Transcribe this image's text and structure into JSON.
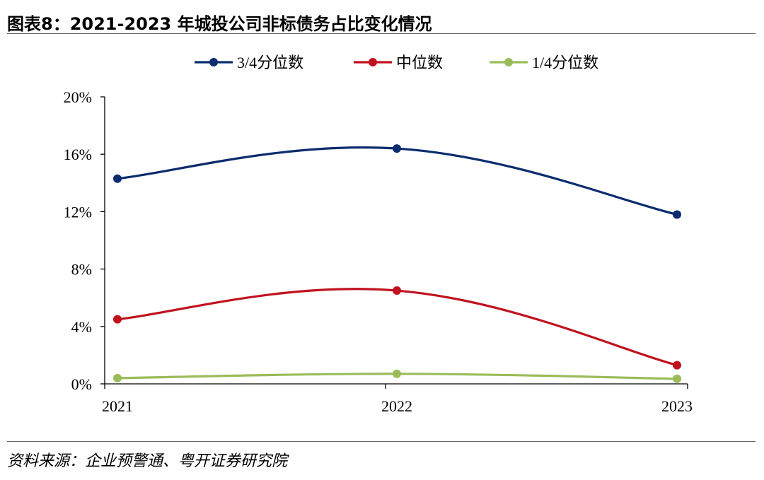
{
  "title": "图表8：2021-2023 年城投公司非标债务占比变化情况",
  "source": "资料来源：企业预警通、粤开证券研究院",
  "chart_data": {
    "type": "line",
    "categories": [
      "2021",
      "2022",
      "2023"
    ],
    "series": [
      {
        "name": "3/4分位数",
        "color": "#0b2c6e",
        "values": [
          14.3,
          16.4,
          11.8
        ]
      },
      {
        "name": "中位数",
        "color": "#c0121e",
        "values": [
          4.5,
          6.5,
          1.3
        ]
      },
      {
        "name": "1/4分位数",
        "color": "#9bbb59",
        "values": [
          0.4,
          0.7,
          0.35
        ]
      }
    ],
    "yticks": [
      "0%",
      "4%",
      "8%",
      "12%",
      "16%",
      "20%"
    ],
    "ylim": [
      0,
      20
    ],
    "legend_position": "top",
    "smooth": true,
    "grid": false
  }
}
